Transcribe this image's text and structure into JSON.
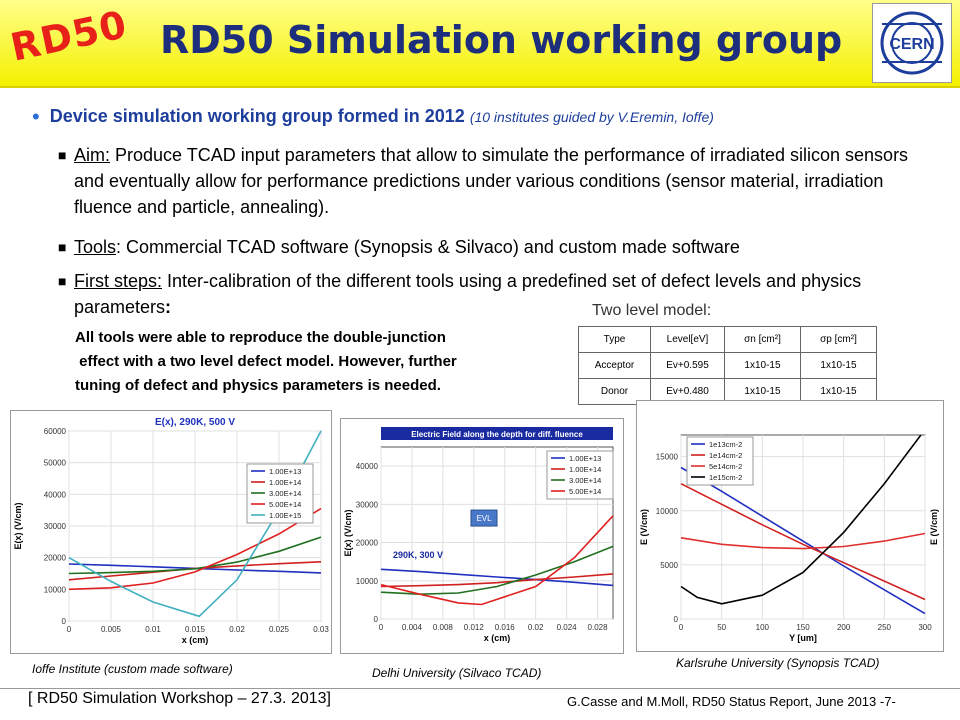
{
  "header": {
    "logo_text": "RD50",
    "title": "RD50 Simulation working group",
    "cern_logo": "CERN"
  },
  "body": {
    "bullet_main": "Device simulation working group formed in 2012",
    "bullet_main_note": "(10 institutes guided by V.Eremin, Ioffe)",
    "aim_label": "Aim:",
    "aim_text": "Produce TCAD input parameters that allow to simulate the performance of irradiated silicon sensors and eventually allow for performance predictions under various conditions (sensor material, irradiation fluence and particle, annealing).",
    "tools_label": "Tools",
    "tools_text": ": Commercial TCAD software (Synopsis & Silvaco) and custom made software",
    "first_label": "First steps:",
    "first_text": "Inter-calibration of the different tools using a predefined set of defect levels and physics parameters",
    "first_colon": ":",
    "note_text": "All tools were able to reproduce the double-junction\n effect with a two level defect model. However, further\ntuning of defect and physics parameters is needed."
  },
  "table": {
    "title": "Two level model:",
    "headers": [
      "Type",
      "Level[eV]",
      "σn [cm²]",
      "σp [cm²]"
    ],
    "rows": [
      [
        "Acceptor",
        "Ev+0.595",
        "1x10-15",
        "1x10-15"
      ],
      [
        "Donor",
        "Ev+0.480",
        "1x10-15",
        "1x10-15"
      ]
    ]
  },
  "captions": {
    "left": "Ioffe Institute (custom made software)",
    "middle": "Delhi University (Silvaco TCAD)",
    "right": "Karlsruhe University (Synopsis TCAD)"
  },
  "footer": {
    "left": "[ RD50 Simulation Workshop – 27.3. 2013]",
    "right": "G.Casse and M.Moll, RD50 Status Report, June 2013",
    "page": "-7-"
  },
  "chart_data": [
    {
      "type": "line",
      "title": "E(x), 290K, 500 V",
      "xlabel": "x (cm)",
      "ylabel": "E(x) (V/cm)",
      "xlim": [
        0,
        0.03
      ],
      "ylim": [
        0,
        60000
      ],
      "x_ticks": [
        "0",
        "0.005",
        "0.01",
        "0.015",
        "0.02",
        "0.025",
        "0.03"
      ],
      "y_ticks": [
        "0",
        "10000",
        "20000",
        "30000",
        "40000",
        "50000",
        "60000"
      ],
      "legend_position": "right",
      "series": [
        {
          "name": "1.00E+13",
          "color": "#2030c0",
          "x": [
            0,
            0.005,
            0.01,
            0.015,
            0.02,
            0.025,
            0.03
          ],
          "y": [
            18000,
            17600,
            17100,
            16600,
            16100,
            15700,
            15200
          ]
        },
        {
          "name": "1.00E+14",
          "color": "#d02020",
          "x": [
            0,
            0.005,
            0.01,
            0.015,
            0.02,
            0.025,
            0.03
          ],
          "y": [
            13000,
            14200,
            15400,
            16600,
            17400,
            18100,
            18700
          ]
        },
        {
          "name": "3.00E+14",
          "color": "#207020",
          "x": [
            0,
            0.005,
            0.01,
            0.015,
            0.02,
            0.025,
            0.03
          ],
          "y": [
            15000,
            15300,
            15700,
            16500,
            18600,
            22000,
            26500
          ]
        },
        {
          "name": "5.00E+14",
          "color": "#e02020",
          "x": [
            0,
            0.005,
            0.01,
            0.015,
            0.02,
            0.025,
            0.03
          ],
          "y": [
            10000,
            10500,
            12000,
            15500,
            21000,
            27500,
            35500
          ]
        },
        {
          "name": "1.00E+15",
          "color": "#40b0c0",
          "x": [
            0,
            0.005,
            0.01,
            0.0155,
            0.02,
            0.025,
            0.03
          ],
          "y": [
            20000,
            12500,
            6000,
            1500,
            13000,
            35000,
            60000
          ]
        }
      ]
    },
    {
      "type": "line",
      "title": "Electric Field along the depth for diff. fluence",
      "annotation": "290K, 300 V",
      "badge": "EVL",
      "xlabel": "x (cm)",
      "ylabel": "E(x) (V/cm)",
      "xlim": [
        0,
        0.03
      ],
      "ylim": [
        0,
        45000
      ],
      "x_ticks": [
        "0",
        "0.004",
        "0.008",
        "0.012",
        "0.016",
        "0.02",
        "0.024",
        "0.028"
      ],
      "y_ticks": [
        "0",
        "10000",
        "20000",
        "30000",
        "40000"
      ],
      "legend_position": "top-right",
      "series": [
        {
          "name": "1.00E+13",
          "color": "#2030c0",
          "x": [
            0,
            0.005,
            0.01,
            0.015,
            0.02,
            0.025,
            0.03
          ],
          "y": [
            13000,
            12400,
            11700,
            11000,
            10300,
            9600,
            8800
          ]
        },
        {
          "name": "1.00E+14",
          "color": "#d02020",
          "x": [
            0,
            0.005,
            0.01,
            0.015,
            0.02,
            0.025,
            0.03
          ],
          "y": [
            8500,
            8700,
            9000,
            9500,
            10300,
            11000,
            11800
          ]
        },
        {
          "name": "3.00E+14",
          "color": "#207020",
          "x": [
            0,
            0.005,
            0.01,
            0.015,
            0.02,
            0.025,
            0.03
          ],
          "y": [
            7000,
            6500,
            6800,
            8500,
            11500,
            15000,
            19000
          ]
        },
        {
          "name": "5.00E+14",
          "color": "#e02020",
          "x": [
            0,
            0.005,
            0.01,
            0.013,
            0.02,
            0.025,
            0.03
          ],
          "y": [
            9000,
            6500,
            4200,
            3800,
            8500,
            16000,
            27000
          ]
        }
      ]
    },
    {
      "type": "line",
      "xlabel": "Y [um]",
      "ylabel": "E (V/cm)",
      "ylabel_right": "E (V/cm)",
      "xlim": [
        0,
        300
      ],
      "ylim": [
        0,
        17000
      ],
      "x_ticks": [
        "0",
        "50",
        "100",
        "150",
        "200",
        "250",
        "300"
      ],
      "y_ticks": [
        "0",
        "5000",
        "10000",
        "15000"
      ],
      "legend_position": "top-left",
      "series": [
        {
          "name": "1e13cm-2",
          "color": "#2030c0",
          "x": [
            0,
            50,
            100,
            150,
            200,
            250,
            300
          ],
          "y": [
            14000,
            11800,
            9500,
            7200,
            4900,
            2700,
            500
          ]
        },
        {
          "name": "1e14cm-2",
          "color": "#d02020",
          "x": [
            0,
            50,
            100,
            150,
            200,
            250,
            300
          ],
          "y": [
            12500,
            10600,
            8700,
            6900,
            5200,
            3500,
            1800
          ]
        },
        {
          "name": "5e14cm-2",
          "color": "#e03030",
          "x": [
            0,
            50,
            100,
            150,
            200,
            250,
            300
          ],
          "y": [
            7500,
            6900,
            6600,
            6500,
            6700,
            7200,
            7900
          ]
        },
        {
          "name": "1e15cm-2",
          "color": "#000000",
          "x": [
            0,
            20,
            50,
            100,
            150,
            200,
            250,
            295
          ],
          "y": [
            3000,
            2000,
            1400,
            2200,
            4300,
            8000,
            12500,
            17000
          ]
        }
      ]
    }
  ]
}
